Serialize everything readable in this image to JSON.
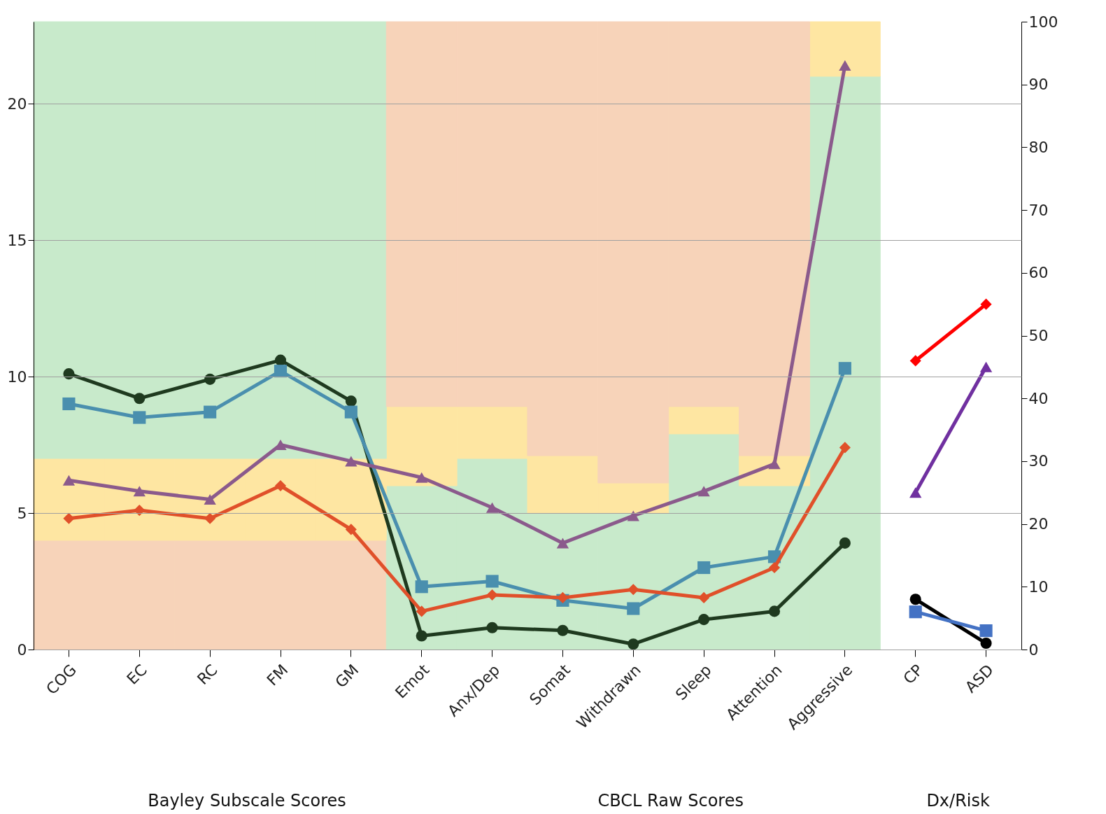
{
  "chart_data": {
    "type": "line",
    "stacked": true,
    "grid": "y",
    "categories": [
      "COG",
      "EC",
      "RC",
      "FM",
      "GM",
      "Emot",
      "Anx/Dep",
      "Somat",
      "Withdrawn",
      "Sleep",
      "Attention",
      "Aggressive",
      "CP",
      "ASD"
    ],
    "ylim": [
      0,
      23
    ],
    "yticks": [
      0,
      5,
      10,
      15,
      20
    ],
    "y2lim": [
      0,
      100
    ],
    "y2ticks": [
      0,
      10,
      20,
      30,
      40,
      50,
      60,
      70,
      80,
      90,
      100
    ],
    "series": [
      {
        "type": "bar",
        "values": [
          4,
          4,
          4,
          4,
          4,
          6,
          7,
          5,
          5,
          7.9,
          6,
          21,
          null,
          null
        ],
        "colors": [
          "#f7d3b9",
          "#f7d3b9",
          "#f7d3b9",
          "#f7d3b9",
          "#f7d3b9",
          "#c8eacb",
          "#c8eacb",
          "#c8eacb",
          "#c8eacb",
          "#c8eacb",
          "#c8eacb",
          "#c8eacb",
          null,
          null
        ]
      },
      {
        "type": "bar",
        "color": "#fee6a2",
        "values": [
          3,
          3,
          3,
          3,
          3,
          2.9,
          1.9,
          2.1,
          1.1,
          1,
          1.1,
          2,
          null,
          null
        ]
      },
      {
        "type": "bar",
        "values": [
          16,
          16,
          16,
          16,
          16,
          14.1,
          14.1,
          15.9,
          16.9,
          14.1,
          15.9,
          null,
          null,
          null
        ],
        "colors": [
          "#c8eacb",
          "#c8eacb",
          "#c8eacb",
          "#c8eacb",
          "#c8eacb",
          "#f7d3b9",
          "#f7d3b9",
          "#f7d3b9",
          "#f7d3b9",
          "#f7d3b9",
          "#f7d3b9",
          null,
          null,
          null
        ]
      },
      {
        "type": "line",
        "color": "#1f3a1f",
        "marker": "circle",
        "values": [
          10.1,
          9.2,
          9.9,
          10.6,
          9.1,
          0.5,
          0.8,
          0.7,
          0.2,
          1.1,
          1.4,
          3.9,
          null,
          null
        ]
      },
      {
        "type": "line",
        "color": "#4a8fae",
        "marker": "square",
        "values": [
          9.0,
          8.5,
          8.7,
          10.2,
          8.7,
          2.3,
          2.5,
          1.8,
          1.5,
          3.0,
          3.4,
          10.3,
          null,
          null
        ]
      },
      {
        "type": "line",
        "color": "#e0502a",
        "marker": "diamond",
        "values": [
          4.8,
          5.1,
          4.8,
          6.0,
          4.4,
          1.4,
          2.0,
          1.9,
          2.2,
          1.9,
          3.0,
          7.4,
          null,
          null
        ]
      },
      {
        "type": "line",
        "color": "#8b5a8c",
        "marker": "triangle",
        "values": [
          6.2,
          5.8,
          5.5,
          7.5,
          6.9,
          6.3,
          5.2,
          3.9,
          4.9,
          5.8,
          6.8,
          21.4,
          null,
          null
        ]
      },
      {
        "type": "line",
        "axis": "y2",
        "color": "#000000",
        "marker": "circle",
        "values": [
          null,
          null,
          null,
          null,
          null,
          null,
          null,
          null,
          null,
          null,
          null,
          null,
          8,
          1
        ]
      },
      {
        "type": "line",
        "axis": "y2",
        "color": "#4472c4",
        "marker": "square",
        "values": [
          null,
          null,
          null,
          null,
          null,
          null,
          null,
          null,
          null,
          null,
          null,
          null,
          6,
          3
        ]
      },
      {
        "type": "line",
        "axis": "y2",
        "color": "#ff0000",
        "marker": "diamond",
        "values": [
          null,
          null,
          null,
          null,
          null,
          null,
          null,
          null,
          null,
          null,
          null,
          null,
          46,
          55
        ]
      },
      {
        "type": "line",
        "axis": "y2",
        "color": "#7030a0",
        "marker": "triangle",
        "values": [
          null,
          null,
          null,
          null,
          null,
          null,
          null,
          null,
          null,
          null,
          null,
          null,
          25,
          45
        ]
      }
    ],
    "annotations": [
      "Bayley Subscale Scores",
      "CBCL Raw Scores",
      "Dx/Risk"
    ]
  }
}
